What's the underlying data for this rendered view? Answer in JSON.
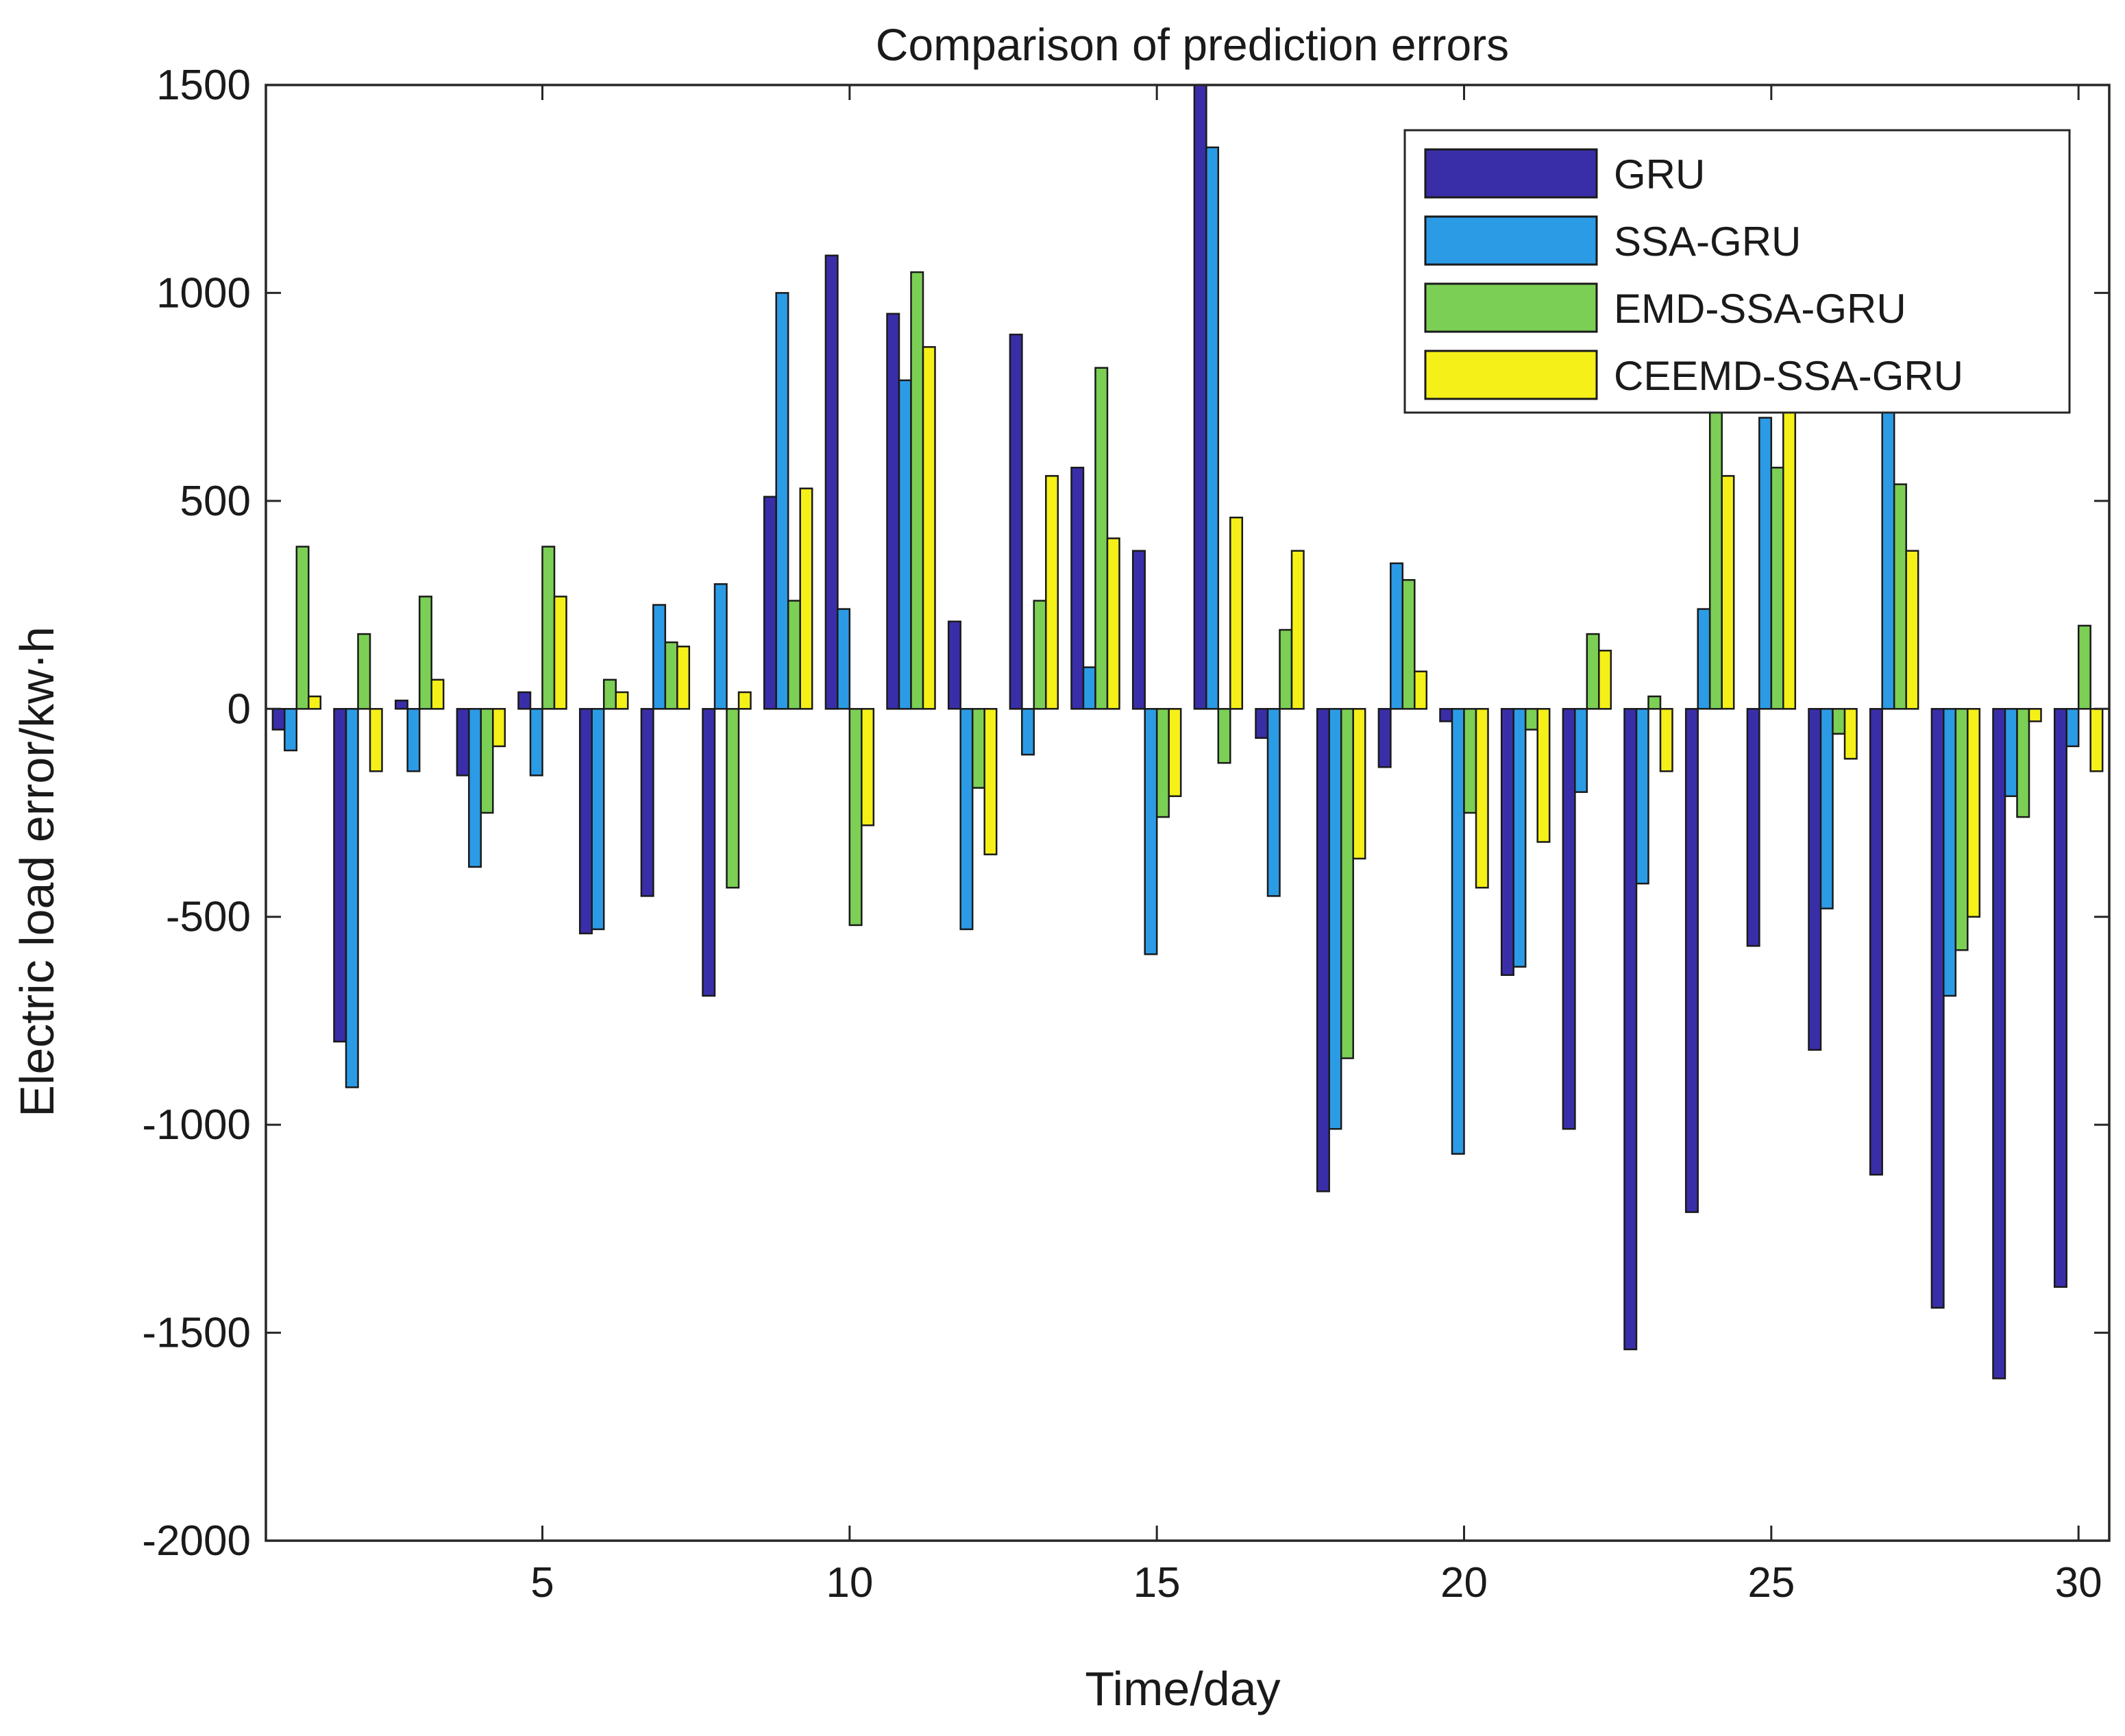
{
  "chart_data": {
    "type": "bar",
    "title": "Comparison of prediction errors",
    "xlabel": "Time/day",
    "ylabel": "Electric load error/kw·h",
    "xlim": [
      0.5,
      30.5
    ],
    "ylim": [
      -2000,
      1500
    ],
    "xticks": [
      5,
      10,
      15,
      20,
      25,
      30
    ],
    "yticks": [
      -2000,
      -1500,
      -1000,
      -500,
      0,
      500,
      1000,
      1500
    ],
    "grid": false,
    "legend_position": "top-right",
    "categories": [
      1,
      2,
      3,
      4,
      5,
      6,
      7,
      8,
      9,
      10,
      11,
      12,
      13,
      14,
      15,
      16,
      17,
      18,
      19,
      20,
      21,
      22,
      23,
      24,
      25,
      26,
      27,
      28,
      29,
      30
    ],
    "series": [
      {
        "name": "GRU",
        "color": "#3a2ea8",
        "values": [
          -50,
          -800,
          20,
          -160,
          40,
          -540,
          -450,
          -690,
          510,
          1090,
          950,
          210,
          900,
          580,
          380,
          1500,
          -70,
          -1160,
          -140,
          -30,
          -640,
          -1010,
          -1540,
          -1210,
          -570,
          -820,
          -1120,
          -1440,
          -1610,
          -1390
        ]
      },
      {
        "name": "SSA-GRU",
        "color": "#2c9be6",
        "values": [
          -100,
          -910,
          -150,
          -380,
          -160,
          -530,
          250,
          300,
          1000,
          240,
          790,
          -530,
          -110,
          100,
          -590,
          1350,
          -450,
          -1010,
          350,
          -1070,
          -620,
          -200,
          -420,
          240,
          700,
          -480,
          760,
          -690,
          -210,
          -90
        ]
      },
      {
        "name": "EMD-SSA-GRU",
        "color": "#7ccf55",
        "values": [
          390,
          180,
          270,
          -250,
          390,
          70,
          160,
          -430,
          260,
          -520,
          1050,
          -190,
          260,
          820,
          -260,
          -130,
          190,
          -840,
          310,
          -250,
          -50,
          180,
          30,
          760,
          580,
          -60,
          540,
          -580,
          -260,
          200
        ]
      },
      {
        "name": "CEEMD-SSA-GRU",
        "color": "#f5f018",
        "values": [
          30,
          -150,
          70,
          -90,
          270,
          40,
          150,
          40,
          530,
          -280,
          870,
          -350,
          560,
          410,
          -210,
          460,
          380,
          -360,
          90,
          -430,
          -320,
          140,
          -150,
          560,
          760,
          -120,
          380,
          -500,
          -30,
          -150
        ]
      }
    ]
  }
}
